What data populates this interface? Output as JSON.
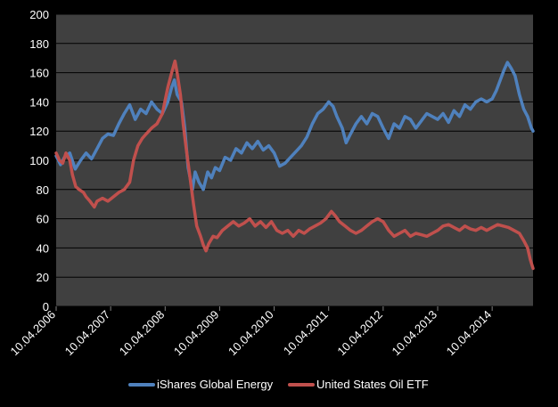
{
  "chart_data": {
    "type": "line",
    "title": "",
    "xlabel": "",
    "ylabel": "",
    "ylim": [
      0,
      200
    ],
    "y_ticks": [
      "0",
      "20",
      "40",
      "60",
      "80",
      "100",
      "120",
      "140",
      "160",
      "180",
      "200"
    ],
    "x_range": [
      2006.0,
      2014.75
    ],
    "x_ticks": [
      {
        "label": "10.04.2006",
        "t": 2006.0
      },
      {
        "label": "10.04.2007",
        "t": 2007.0
      },
      {
        "label": "10.04.2008",
        "t": 2008.0
      },
      {
        "label": "10.04.2009",
        "t": 2009.0
      },
      {
        "label": "10.04.2010",
        "t": 2010.0
      },
      {
        "label": "10.04.2011",
        "t": 2011.0
      },
      {
        "label": "10.04.2012",
        "t": 2012.0
      },
      {
        "label": "10.04.2013",
        "t": 2013.0
      },
      {
        "label": "10.04.2014",
        "t": 2014.0
      }
    ],
    "legend_position": "bottom",
    "plot_background": "#404040",
    "gridline_color": "#000000",
    "series": [
      {
        "name": "iShares Global Energy",
        "color": "#4F81BD",
        "points": [
          [
            2006.0,
            103
          ],
          [
            2006.08,
            97
          ],
          [
            2006.15,
            102
          ],
          [
            2006.25,
            105
          ],
          [
            2006.35,
            94
          ],
          [
            2006.45,
            100
          ],
          [
            2006.55,
            105
          ],
          [
            2006.65,
            101
          ],
          [
            2006.75,
            108
          ],
          [
            2006.85,
            115
          ],
          [
            2006.95,
            118
          ],
          [
            2007.05,
            117
          ],
          [
            2007.15,
            125
          ],
          [
            2007.25,
            132
          ],
          [
            2007.35,
            138
          ],
          [
            2007.45,
            128
          ],
          [
            2007.55,
            135
          ],
          [
            2007.65,
            132
          ],
          [
            2007.75,
            140
          ],
          [
            2007.85,
            135
          ],
          [
            2007.95,
            132
          ],
          [
            2008.05,
            140
          ],
          [
            2008.12,
            150
          ],
          [
            2008.17,
            155
          ],
          [
            2008.22,
            145
          ],
          [
            2008.3,
            140
          ],
          [
            2008.36,
            122
          ],
          [
            2008.42,
            95
          ],
          [
            2008.5,
            80
          ],
          [
            2008.55,
            92
          ],
          [
            2008.62,
            85
          ],
          [
            2008.7,
            80
          ],
          [
            2008.78,
            92
          ],
          [
            2008.85,
            88
          ],
          [
            2008.92,
            95
          ],
          [
            2009.0,
            93
          ],
          [
            2009.1,
            102
          ],
          [
            2009.2,
            100
          ],
          [
            2009.3,
            108
          ],
          [
            2009.4,
            105
          ],
          [
            2009.5,
            112
          ],
          [
            2009.6,
            108
          ],
          [
            2009.7,
            113
          ],
          [
            2009.8,
            107
          ],
          [
            2009.9,
            110
          ],
          [
            2010.0,
            105
          ],
          [
            2010.1,
            96
          ],
          [
            2010.2,
            98
          ],
          [
            2010.3,
            102
          ],
          [
            2010.4,
            106
          ],
          [
            2010.5,
            110
          ],
          [
            2010.6,
            116
          ],
          [
            2010.7,
            125
          ],
          [
            2010.8,
            132
          ],
          [
            2010.9,
            135
          ],
          [
            2011.0,
            140
          ],
          [
            2011.08,
            137
          ],
          [
            2011.15,
            130
          ],
          [
            2011.25,
            122
          ],
          [
            2011.32,
            112
          ],
          [
            2011.4,
            118
          ],
          [
            2011.5,
            125
          ],
          [
            2011.6,
            130
          ],
          [
            2011.7,
            125
          ],
          [
            2011.8,
            132
          ],
          [
            2011.9,
            130
          ],
          [
            2012.0,
            122
          ],
          [
            2012.1,
            115
          ],
          [
            2012.2,
            125
          ],
          [
            2012.3,
            122
          ],
          [
            2012.4,
            130
          ],
          [
            2012.5,
            128
          ],
          [
            2012.6,
            122
          ],
          [
            2012.7,
            127
          ],
          [
            2012.8,
            132
          ],
          [
            2012.9,
            130
          ],
          [
            2013.0,
            128
          ],
          [
            2013.1,
            132
          ],
          [
            2013.2,
            126
          ],
          [
            2013.3,
            134
          ],
          [
            2013.4,
            130
          ],
          [
            2013.5,
            138
          ],
          [
            2013.6,
            135
          ],
          [
            2013.7,
            140
          ],
          [
            2013.8,
            142
          ],
          [
            2013.9,
            140
          ],
          [
            2014.0,
            142
          ],
          [
            2014.08,
            148
          ],
          [
            2014.15,
            155
          ],
          [
            2014.22,
            162
          ],
          [
            2014.28,
            167
          ],
          [
            2014.35,
            163
          ],
          [
            2014.42,
            158
          ],
          [
            2014.5,
            145
          ],
          [
            2014.58,
            135
          ],
          [
            2014.65,
            130
          ],
          [
            2014.72,
            122
          ],
          [
            2014.75,
            120
          ]
        ]
      },
      {
        "name": "United States Oil ETF",
        "color": "#C0504D",
        "points": [
          [
            2006.0,
            105
          ],
          [
            2006.06,
            100
          ],
          [
            2006.12,
            98
          ],
          [
            2006.18,
            105
          ],
          [
            2006.25,
            100
          ],
          [
            2006.3,
            90
          ],
          [
            2006.36,
            82
          ],
          [
            2006.42,
            80
          ],
          [
            2006.5,
            78
          ],
          [
            2006.55,
            75
          ],
          [
            2006.62,
            72
          ],
          [
            2006.7,
            68
          ],
          [
            2006.75,
            72
          ],
          [
            2006.85,
            74
          ],
          [
            2006.95,
            72
          ],
          [
            2007.05,
            75
          ],
          [
            2007.15,
            78
          ],
          [
            2007.25,
            80
          ],
          [
            2007.35,
            85
          ],
          [
            2007.42,
            100
          ],
          [
            2007.5,
            110
          ],
          [
            2007.58,
            115
          ],
          [
            2007.65,
            118
          ],
          [
            2007.75,
            122
          ],
          [
            2007.85,
            125
          ],
          [
            2007.95,
            132
          ],
          [
            2008.05,
            150
          ],
          [
            2008.12,
            160
          ],
          [
            2008.18,
            168
          ],
          [
            2008.22,
            160
          ],
          [
            2008.28,
            145
          ],
          [
            2008.33,
            125
          ],
          [
            2008.38,
            110
          ],
          [
            2008.45,
            90
          ],
          [
            2008.52,
            70
          ],
          [
            2008.58,
            55
          ],
          [
            2008.65,
            48
          ],
          [
            2008.7,
            42
          ],
          [
            2008.75,
            38
          ],
          [
            2008.8,
            43
          ],
          [
            2008.88,
            48
          ],
          [
            2008.95,
            47
          ],
          [
            2009.05,
            52
          ],
          [
            2009.15,
            55
          ],
          [
            2009.25,
            58
          ],
          [
            2009.35,
            55
          ],
          [
            2009.45,
            57
          ],
          [
            2009.55,
            60
          ],
          [
            2009.65,
            55
          ],
          [
            2009.75,
            58
          ],
          [
            2009.85,
            54
          ],
          [
            2009.95,
            58
          ],
          [
            2010.05,
            52
          ],
          [
            2010.15,
            50
          ],
          [
            2010.25,
            52
          ],
          [
            2010.35,
            48
          ],
          [
            2010.45,
            52
          ],
          [
            2010.55,
            50
          ],
          [
            2010.65,
            53
          ],
          [
            2010.75,
            55
          ],
          [
            2010.85,
            57
          ],
          [
            2010.95,
            60
          ],
          [
            2011.05,
            65
          ],
          [
            2011.12,
            62
          ],
          [
            2011.2,
            58
          ],
          [
            2011.3,
            55
          ],
          [
            2011.4,
            52
          ],
          [
            2011.5,
            50
          ],
          [
            2011.6,
            52
          ],
          [
            2011.7,
            55
          ],
          [
            2011.8,
            58
          ],
          [
            2011.9,
            60
          ],
          [
            2012.0,
            58
          ],
          [
            2012.1,
            52
          ],
          [
            2012.2,
            48
          ],
          [
            2012.3,
            50
          ],
          [
            2012.4,
            52
          ],
          [
            2012.5,
            48
          ],
          [
            2012.6,
            50
          ],
          [
            2012.7,
            49
          ],
          [
            2012.8,
            48
          ],
          [
            2012.9,
            50
          ],
          [
            2013.0,
            52
          ],
          [
            2013.1,
            55
          ],
          [
            2013.2,
            56
          ],
          [
            2013.3,
            54
          ],
          [
            2013.4,
            52
          ],
          [
            2013.5,
            55
          ],
          [
            2013.6,
            53
          ],
          [
            2013.7,
            52
          ],
          [
            2013.8,
            54
          ],
          [
            2013.9,
            52
          ],
          [
            2014.0,
            54
          ],
          [
            2014.1,
            56
          ],
          [
            2014.2,
            55
          ],
          [
            2014.3,
            54
          ],
          [
            2014.4,
            52
          ],
          [
            2014.5,
            50
          ],
          [
            2014.58,
            45
          ],
          [
            2014.65,
            40
          ],
          [
            2014.7,
            32
          ],
          [
            2014.75,
            26
          ]
        ]
      }
    ]
  }
}
